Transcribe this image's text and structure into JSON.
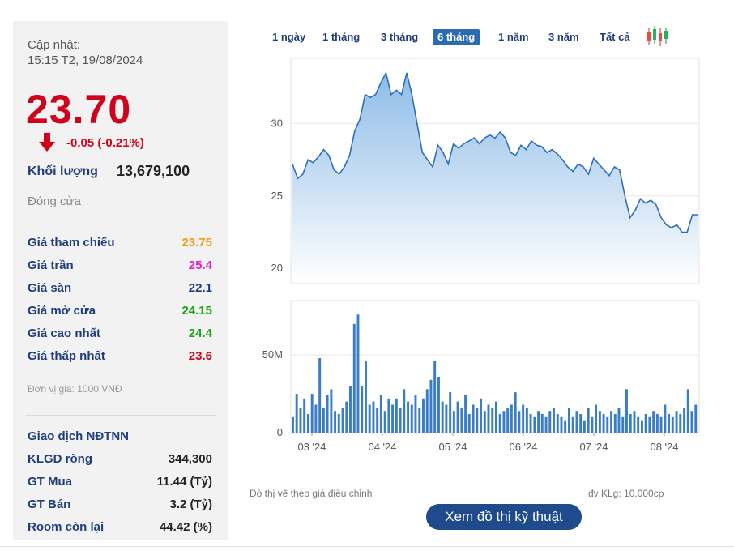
{
  "panel": {
    "update_label": "Cập nhật:",
    "update_time": "15:15 T2, 19/08/2024",
    "price": "23.70",
    "change": "-0.05 (-0.21%)",
    "volume_label": "Khối lượng",
    "volume_value": "13,679,100",
    "status": "Đóng cửa",
    "stats": [
      {
        "label": "Giá tham chiếu",
        "value": "23.75",
        "color": "#f39c12"
      },
      {
        "label": "Giá trần",
        "value": "25.4",
        "color": "#e020d0"
      },
      {
        "label": "Giá sàn",
        "value": "22.1",
        "color": "#1f3d7a"
      },
      {
        "label": "Giá mở cửa",
        "value": "24.15",
        "color": "#17a317"
      },
      {
        "label": "Giá cao nhất",
        "value": "24.4",
        "color": "#17a317"
      },
      {
        "label": "Giá thấp nhất",
        "value": "23.6",
        "color": "#d0021b"
      }
    ],
    "unit_note": "Đơn vị giá: 1000 VNĐ",
    "foreign_title": "Giao dịch NĐTNN",
    "foreign": [
      {
        "label": "KLGD ròng",
        "value": "344,300"
      },
      {
        "label": "GT Mua",
        "value": "11.44 (Tỷ)"
      },
      {
        "label": "GT Bán",
        "value": "3.2 (Tỷ)"
      },
      {
        "label": "Room còn lại",
        "value": "44.42 (%)"
      }
    ]
  },
  "ranges": [
    "1 ngày",
    "1 tháng",
    "3 tháng",
    "6 tháng",
    "1 năm",
    "3 năm",
    "Tất cả"
  ],
  "active_range": "6 tháng",
  "footer": {
    "note_left": "Đồ thị vẽ theo giá điều chỉnh",
    "note_right": "đv KLg: 10,000cp",
    "button": "Xem đồ thị kỹ thuật"
  },
  "chart_data": [
    {
      "type": "area",
      "x_labels": [
        "03 '24",
        "04 '24",
        "05 '24",
        "06 '24",
        "07 '24",
        "08 '24"
      ],
      "ylim": [
        19,
        34.5
      ],
      "yticks": [
        20,
        25,
        30
      ],
      "grid": true,
      "colors": {
        "line": "#2f6fb5",
        "fill_top": "#8fbce8",
        "fill_bottom": "#ffffff"
      },
      "values": [
        27.2,
        26.2,
        26.5,
        27.5,
        27.3,
        27.7,
        28.2,
        27.8,
        26.8,
        26.5,
        27.0,
        27.8,
        29.5,
        30.3,
        32.0,
        31.8,
        32.0,
        32.8,
        33.5,
        32.0,
        32.3,
        32.0,
        33.5,
        32.0,
        30.0,
        28.0,
        27.5,
        27.0,
        28.5,
        28.0,
        27.2,
        28.6,
        28.3,
        28.6,
        28.8,
        29.0,
        28.6,
        29.0,
        29.2,
        29.0,
        29.4,
        29.0,
        28.0,
        27.8,
        28.5,
        28.2,
        28.8,
        28.5,
        28.4,
        28.0,
        28.2,
        27.9,
        27.5,
        27.0,
        26.7,
        27.2,
        27.0,
        26.5,
        27.6,
        27.2,
        26.8,
        26.4,
        27.0,
        26.8,
        25.0,
        23.5,
        24.0,
        24.8,
        24.5,
        24.7,
        24.4,
        23.5,
        23.0,
        22.8,
        23.0,
        22.5,
        22.5,
        23.7,
        23.7
      ]
    },
    {
      "type": "bar",
      "ylim": [
        0,
        85
      ],
      "yticks": [
        0,
        50
      ],
      "ytick_labels": [
        "0",
        "50M"
      ],
      "color": "#3b7dc4",
      "values": [
        10,
        25,
        16,
        22,
        12,
        25,
        18,
        48,
        16,
        24,
        28,
        14,
        12,
        16,
        20,
        30,
        70,
        76,
        30,
        46,
        18,
        20,
        16,
        24,
        14,
        22,
        18,
        22,
        16,
        28,
        20,
        18,
        24,
        16,
        22,
        28,
        34,
        46,
        36,
        20,
        18,
        26,
        14,
        20,
        16,
        24,
        12,
        18,
        16,
        22,
        14,
        18,
        16,
        20,
        12,
        14,
        16,
        18,
        26,
        14,
        18,
        16,
        12,
        10,
        14,
        12,
        10,
        14,
        16,
        12,
        10,
        8,
        16,
        10,
        14,
        12,
        8,
        16,
        10,
        18,
        14,
        12,
        10,
        14,
        12,
        16,
        10,
        28,
        12,
        14,
        10,
        8,
        12,
        10,
        14,
        12,
        10,
        18,
        12,
        10,
        14,
        12,
        16,
        28,
        14,
        18
      ]
    }
  ]
}
